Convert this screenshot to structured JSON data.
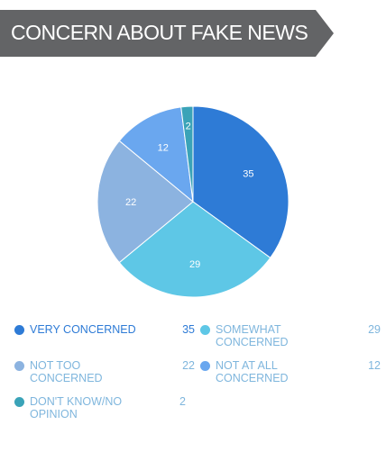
{
  "title": "CONCERN ABOUT FAKE NEWS",
  "colors": {
    "banner": "#636466",
    "slice_edge": "#ffffff",
    "legend_text_dark": "#2e7bd6",
    "legend_text_light": "#7fb6dd"
  },
  "chart_data": {
    "type": "pie",
    "title": "CONCERN ABOUT FAKE NEWS",
    "start_angle_deg": 0,
    "direction": "clockwise",
    "slices": [
      {
        "label": "VERY CONCERNED",
        "value": 35,
        "color": "#2e7bd6"
      },
      {
        "label": "SOMEWHAT CONCERNED",
        "value": 29,
        "color": "#5ec7e6"
      },
      {
        "label": "NOT TOO CONCERNED",
        "value": 22,
        "color": "#8cb3e0"
      },
      {
        "label": "NOT AT ALL CONCERNED",
        "value": 12,
        "color": "#6aa7ef"
      },
      {
        "label": "DON'T KNOW/NO OPINION",
        "value": 2,
        "color": "#3aa3b8"
      }
    ]
  },
  "legend": [
    {
      "label": "VERY CONCERNED",
      "value": "35",
      "color": "#2e7bd6",
      "text_color": "#2e7bd6"
    },
    {
      "label": "SOMEWHAT CONCERNED",
      "value": "29",
      "color": "#5ec7e6",
      "text_color": "#7fb6dd"
    },
    {
      "label": "NOT TOO CONCERNED",
      "value": "22",
      "color": "#8cb3e0",
      "text_color": "#7fb6dd"
    },
    {
      "label": "NOT AT ALL CONCERNED",
      "value": "12",
      "color": "#6aa7ef",
      "text_color": "#7fb6dd"
    },
    {
      "label": "DON'T KNOW/NO OPINION",
      "value": "2",
      "color": "#3aa3b8",
      "text_color": "#7fb6dd"
    }
  ]
}
